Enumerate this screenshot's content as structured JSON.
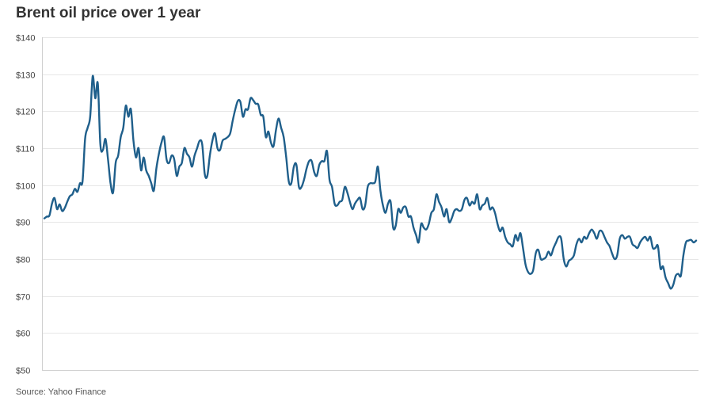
{
  "chart_data": {
    "type": "line",
    "title": "Brent oil price over 1 year",
    "source": "Source: Yahoo Finance",
    "xlabel": "",
    "ylabel": "",
    "ylim": [
      50,
      140
    ],
    "y_ticks": [
      50,
      60,
      70,
      80,
      90,
      100,
      110,
      120,
      130,
      140
    ],
    "y_tick_labels": [
      "$50",
      "$60",
      "$70",
      "$80",
      "$90",
      "$100",
      "$110",
      "$120",
      "$130",
      "$140"
    ],
    "grid": true,
    "legend": "none",
    "colors": {
      "line": "#1f5f8b",
      "grid": "#e6e6e6",
      "text": "#333333"
    },
    "series": [
      {
        "values": [
          91,
          91.5,
          91.8,
          95,
          96.5,
          93.5,
          94.8,
          93,
          93.8,
          95.5,
          97,
          97.5,
          99,
          98.2,
          100.5,
          101,
          112.5,
          115.5,
          118.5,
          129.5,
          123.5,
          127.5,
          111,
          109.5,
          112.5,
          107,
          100.5,
          98,
          106,
          108,
          113,
          115.5,
          121.5,
          118.5,
          120.5,
          112,
          107.5,
          110,
          104,
          107.5,
          104,
          102.5,
          100.5,
          98.5,
          104.5,
          108.5,
          111.5,
          113,
          107,
          106,
          108,
          107,
          102.5,
          105,
          106,
          110,
          108.5,
          107.5,
          105,
          108,
          110,
          112,
          111,
          103,
          102.5,
          108,
          112,
          114,
          110,
          109.5,
          112,
          112.5,
          113,
          114,
          117.5,
          120.5,
          122.8,
          122.5,
          118.5,
          120.5,
          120.5,
          123.5,
          123,
          122,
          121.8,
          119,
          118.5,
          113,
          114.5,
          111.5,
          110.5,
          115,
          118,
          115.5,
          113,
          107.5,
          101,
          100.5,
          105,
          105.5,
          99.5,
          99.5,
          101.5,
          104.5,
          106.5,
          106.5,
          103.5,
          102.5,
          105.5,
          106.5,
          106.5,
          109.2,
          101.5,
          99.5,
          95,
          94.5,
          95.5,
          96,
          99.5,
          98,
          95.5,
          93.5,
          95,
          96,
          96.5,
          93.5,
          94.5,
          99.5,
          100.5,
          100.5,
          101,
          105,
          98.5,
          94.5,
          92.5,
          95,
          95.5,
          88.5,
          89,
          93.5,
          92.5,
          94,
          94,
          91.5,
          91.5,
          88.5,
          86.5,
          84.5,
          89.5,
          88.5,
          88,
          89.5,
          92.5,
          93.5,
          97.5,
          95.5,
          94,
          91.5,
          93.5,
          90,
          91,
          93,
          93.5,
          93,
          93.5,
          96,
          96.5,
          94.5,
          95.5,
          95,
          97.5,
          93.5,
          94.5,
          95,
          96.5,
          93.5,
          94,
          92.5,
          89.5,
          87.5,
          88.5,
          86,
          84.5,
          84,
          83.5,
          86.5,
          85,
          87,
          83,
          78.5,
          76.5,
          76,
          77,
          81.5,
          82.5,
          80,
          80,
          80.5,
          82,
          81,
          83,
          84.5,
          86,
          85.5,
          80,
          78,
          79.5,
          80,
          81,
          84,
          85.5,
          84.5,
          86,
          85.5,
          87,
          88,
          87,
          85.5,
          87.5,
          87.5,
          86,
          84.5,
          83.5,
          81.5,
          80,
          81,
          85.5,
          86.5,
          85.5,
          86,
          86,
          84,
          83.5,
          83,
          84.5,
          85.5,
          86,
          85,
          86,
          83,
          83,
          83.5,
          77.5,
          78,
          75,
          73.5,
          72,
          73,
          75.5,
          76,
          75.5,
          81,
          84.5,
          85,
          85.2,
          84.5,
          85
        ]
      }
    ]
  }
}
